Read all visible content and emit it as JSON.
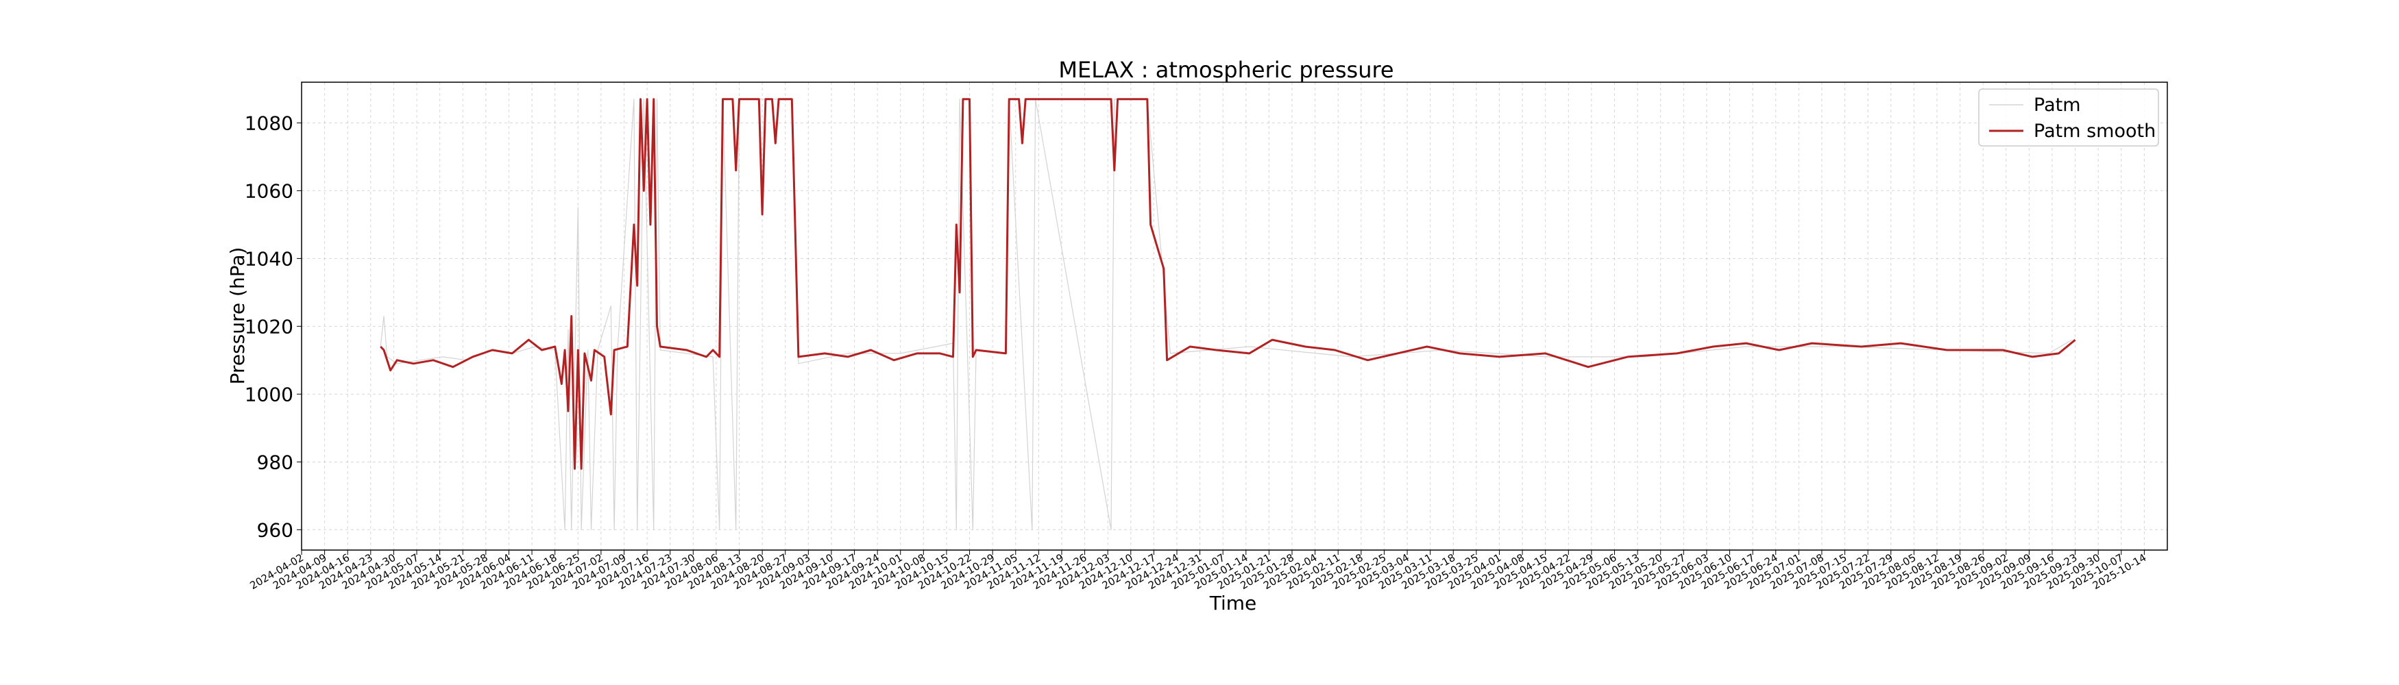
{
  "chart_data": {
    "type": "line",
    "title": "MELAX : atmospheric pressure",
    "xlabel": "Time",
    "ylabel": "Pressure (hPa)",
    "xlim": [
      "2024-04-02",
      "2025-10-21"
    ],
    "ylim": [
      954,
      1092
    ],
    "yticks": [
      960,
      980,
      1000,
      1020,
      1040,
      1060,
      1080
    ],
    "xtick_start": "2024-04-02",
    "xtick_step_days": 7,
    "xtick_count": 81,
    "grid": true,
    "legend_position": "upper right",
    "series": [
      {
        "name": "Patm",
        "color": "#d3d3d3",
        "points": [
          [
            "2024-04-26",
            1014
          ],
          [
            "2024-04-27",
            1023
          ],
          [
            "2024-04-28",
            1011
          ],
          [
            "2024-05-01",
            1009
          ],
          [
            "2024-05-08",
            1010
          ],
          [
            "2024-05-15",
            1011
          ],
          [
            "2024-05-22",
            1010
          ],
          [
            "2024-05-29",
            1013
          ],
          [
            "2024-06-05",
            1012
          ],
          [
            "2024-06-12",
            1014
          ],
          [
            "2024-06-18",
            1013
          ],
          [
            "2024-06-21",
            960
          ],
          [
            "2024-06-22",
            1019
          ],
          [
            "2024-06-23",
            960
          ],
          [
            "2024-06-25",
            1055
          ],
          [
            "2024-06-26",
            960
          ],
          [
            "2024-06-28",
            1013
          ],
          [
            "2024-06-29",
            960
          ],
          [
            "2024-07-01",
            1013
          ],
          [
            "2024-07-05",
            1026
          ],
          [
            "2024-07-06",
            960
          ],
          [
            "2024-07-07",
            1013
          ],
          [
            "2024-07-12",
            1087
          ],
          [
            "2024-07-13",
            960
          ],
          [
            "2024-07-15",
            1087
          ],
          [
            "2024-07-18",
            960
          ],
          [
            "2024-07-19",
            1087
          ],
          [
            "2024-07-20",
            1013
          ],
          [
            "2024-08-05",
            1011
          ],
          [
            "2024-08-07",
            960
          ],
          [
            "2024-08-08",
            1087
          ],
          [
            "2024-08-12",
            960
          ],
          [
            "2024-08-13",
            1087
          ],
          [
            "2024-08-29",
            1087
          ],
          [
            "2024-08-31",
            1009
          ],
          [
            "2024-09-15",
            1012
          ],
          [
            "2024-10-01",
            1012
          ],
          [
            "2024-10-17",
            1015
          ],
          [
            "2024-10-18",
            960
          ],
          [
            "2024-10-19",
            1087
          ],
          [
            "2024-10-23",
            960
          ],
          [
            "2024-10-24",
            1013
          ],
          [
            "2024-11-02",
            1012
          ],
          [
            "2024-11-03",
            1087
          ],
          [
            "2024-11-10",
            960
          ],
          [
            "2024-11-11",
            1087
          ],
          [
            "2024-12-04",
            960
          ],
          [
            "2024-12-05",
            1087
          ],
          [
            "2024-12-15",
            1087
          ],
          [
            "2024-12-22",
            1012
          ],
          [
            "2025-01-15",
            1014
          ],
          [
            "2025-02-15",
            1011
          ],
          [
            "2025-03-15",
            1013
          ],
          [
            "2025-04-15",
            1011
          ],
          [
            "2025-05-15",
            1011
          ],
          [
            "2025-06-15",
            1014
          ],
          [
            "2025-07-15",
            1014
          ],
          [
            "2025-08-15",
            1013
          ],
          [
            "2025-09-15",
            1012
          ],
          [
            "2025-09-22",
            1016
          ]
        ]
      },
      {
        "name": "Patm smooth",
        "color": "#b22222",
        "points": [
          [
            "2024-04-26",
            1014
          ],
          [
            "2024-04-27",
            1013
          ],
          [
            "2024-04-29",
            1007
          ],
          [
            "2024-05-01",
            1010
          ],
          [
            "2024-05-06",
            1009
          ],
          [
            "2024-05-12",
            1010
          ],
          [
            "2024-05-18",
            1008
          ],
          [
            "2024-05-24",
            1011
          ],
          [
            "2024-05-30",
            1013
          ],
          [
            "2024-06-05",
            1012
          ],
          [
            "2024-06-10",
            1016
          ],
          [
            "2024-06-14",
            1013
          ],
          [
            "2024-06-18",
            1014
          ],
          [
            "2024-06-20",
            1003
          ],
          [
            "2024-06-21",
            1013
          ],
          [
            "2024-06-22",
            995
          ],
          [
            "2024-06-23",
            1023
          ],
          [
            "2024-06-24",
            978
          ],
          [
            "2024-06-25",
            1013
          ],
          [
            "2024-06-26",
            978
          ],
          [
            "2024-06-27",
            1012
          ],
          [
            "2024-06-29",
            1004
          ],
          [
            "2024-06-30",
            1013
          ],
          [
            "2024-07-03",
            1011
          ],
          [
            "2024-07-05",
            994
          ],
          [
            "2024-07-06",
            1013
          ],
          [
            "2024-07-10",
            1014
          ],
          [
            "2024-07-12",
            1050
          ],
          [
            "2024-07-13",
            1032
          ],
          [
            "2024-07-14",
            1087
          ],
          [
            "2024-07-15",
            1060
          ],
          [
            "2024-07-16",
            1087
          ],
          [
            "2024-07-17",
            1050
          ],
          [
            "2024-07-18",
            1087
          ],
          [
            "2024-07-19",
            1020
          ],
          [
            "2024-07-20",
            1014
          ],
          [
            "2024-07-28",
            1013
          ],
          [
            "2024-08-03",
            1011
          ],
          [
            "2024-08-05",
            1013
          ],
          [
            "2024-08-07",
            1011
          ],
          [
            "2024-08-08",
            1087
          ],
          [
            "2024-08-11",
            1087
          ],
          [
            "2024-08-12",
            1066
          ],
          [
            "2024-08-13",
            1087
          ],
          [
            "2024-08-19",
            1087
          ],
          [
            "2024-08-20",
            1053
          ],
          [
            "2024-08-21",
            1087
          ],
          [
            "2024-08-23",
            1087
          ],
          [
            "2024-08-24",
            1074
          ],
          [
            "2024-08-25",
            1087
          ],
          [
            "2024-08-29",
            1087
          ],
          [
            "2024-08-31",
            1011
          ],
          [
            "2024-09-08",
            1012
          ],
          [
            "2024-09-15",
            1011
          ],
          [
            "2024-09-22",
            1013
          ],
          [
            "2024-09-29",
            1010
          ],
          [
            "2024-10-06",
            1012
          ],
          [
            "2024-10-13",
            1012
          ],
          [
            "2024-10-17",
            1011
          ],
          [
            "2024-10-18",
            1050
          ],
          [
            "2024-10-19",
            1030
          ],
          [
            "2024-10-20",
            1087
          ],
          [
            "2024-10-22",
            1087
          ],
          [
            "2024-10-23",
            1011
          ],
          [
            "2024-10-24",
            1013
          ],
          [
            "2024-11-02",
            1012
          ],
          [
            "2024-11-03",
            1087
          ],
          [
            "2024-11-06",
            1087
          ],
          [
            "2024-11-07",
            1074
          ],
          [
            "2024-11-08",
            1087
          ],
          [
            "2024-12-04",
            1087
          ],
          [
            "2024-12-05",
            1066
          ],
          [
            "2024-12-06",
            1087
          ],
          [
            "2024-12-15",
            1087
          ],
          [
            "2024-12-16",
            1050
          ],
          [
            "2024-12-20",
            1037
          ],
          [
            "2024-12-21",
            1010
          ],
          [
            "2024-12-28",
            1014
          ],
          [
            "2025-01-05",
            1013
          ],
          [
            "2025-01-15",
            1012
          ],
          [
            "2025-01-22",
            1016
          ],
          [
            "2025-02-01",
            1014
          ],
          [
            "2025-02-10",
            1013
          ],
          [
            "2025-02-20",
            1010
          ],
          [
            "2025-03-01",
            1012
          ],
          [
            "2025-03-10",
            1014
          ],
          [
            "2025-03-20",
            1012
          ],
          [
            "2025-04-01",
            1011
          ],
          [
            "2025-04-15",
            1012
          ],
          [
            "2025-04-28",
            1008
          ],
          [
            "2025-05-10",
            1011
          ],
          [
            "2025-05-25",
            1012
          ],
          [
            "2025-06-05",
            1014
          ],
          [
            "2025-06-15",
            1015
          ],
          [
            "2025-06-25",
            1013
          ],
          [
            "2025-07-05",
            1015
          ],
          [
            "2025-07-20",
            1014
          ],
          [
            "2025-08-01",
            1015
          ],
          [
            "2025-08-15",
            1013
          ],
          [
            "2025-09-01",
            1013
          ],
          [
            "2025-09-10",
            1011
          ],
          [
            "2025-09-18",
            1012
          ],
          [
            "2025-09-23",
            1016
          ]
        ]
      }
    ]
  }
}
